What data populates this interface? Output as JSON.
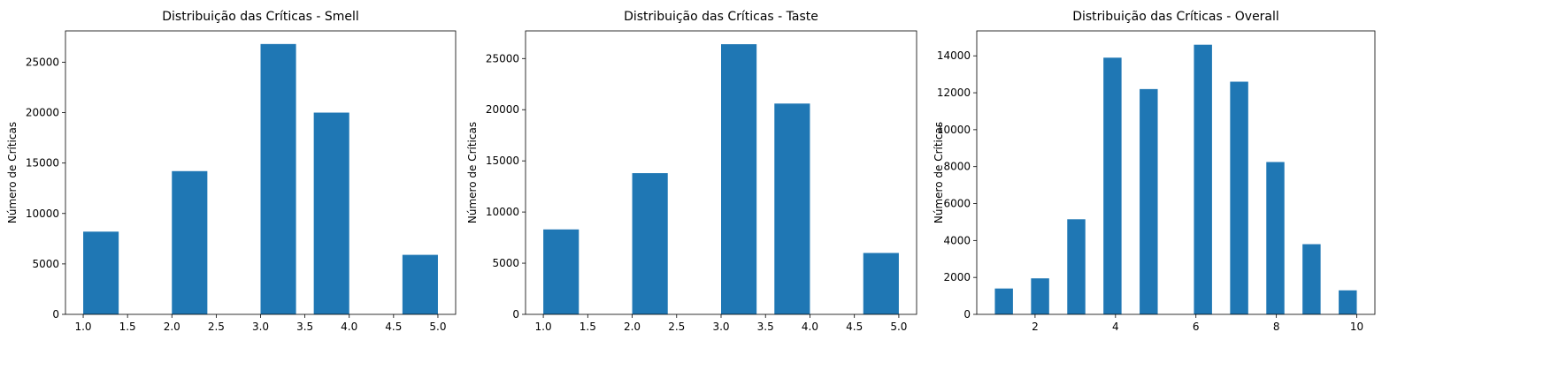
{
  "chart_data": [
    {
      "type": "bar",
      "title": "Distribuição das Críticas - Smell",
      "xlabel": "",
      "ylabel": "Número de Críticas",
      "xlim": [
        0.8,
        5.2
      ],
      "ylim": [
        0,
        28100
      ],
      "xticks": [
        1.0,
        1.5,
        2.0,
        2.5,
        3.0,
        3.5,
        4.0,
        4.5,
        5.0
      ],
      "xtick_labels": [
        "1.0",
        "1.5",
        "2.0",
        "2.5",
        "3.0",
        "3.5",
        "4.0",
        "4.5",
        "5.0"
      ],
      "yticks": [
        0,
        5000,
        10000,
        15000,
        20000,
        25000
      ],
      "ytick_labels": [
        "0",
        "5000",
        "10000",
        "15000",
        "20000",
        "25000"
      ],
      "bar_width": 0.4,
      "bars": [
        {
          "x_start": 1.0,
          "value": 8200
        },
        {
          "x_start": 2.0,
          "value": 14200
        },
        {
          "x_start": 3.0,
          "value": 26800
        },
        {
          "x_start": 3.6,
          "value": 20000
        },
        {
          "x_start": 4.6,
          "value": 5900
        }
      ],
      "grid": false,
      "color": "#1f77b4"
    },
    {
      "type": "bar",
      "title": "Distribuição das Críticas - Taste",
      "xlabel": "",
      "ylabel": "Número de Críticas",
      "xlim": [
        0.8,
        5.2
      ],
      "ylim": [
        0,
        27700
      ],
      "xticks": [
        1.0,
        1.5,
        2.0,
        2.5,
        3.0,
        3.5,
        4.0,
        4.5,
        5.0
      ],
      "xtick_labels": [
        "1.0",
        "1.5",
        "2.0",
        "2.5",
        "3.0",
        "3.5",
        "4.0",
        "4.5",
        "5.0"
      ],
      "yticks": [
        0,
        5000,
        10000,
        15000,
        20000,
        25000
      ],
      "ytick_labels": [
        "0",
        "5000",
        "10000",
        "15000",
        "20000",
        "25000"
      ],
      "bar_width": 0.4,
      "bars": [
        {
          "x_start": 1.0,
          "value": 8300
        },
        {
          "x_start": 2.0,
          "value": 13800
        },
        {
          "x_start": 3.0,
          "value": 26400
        },
        {
          "x_start": 3.6,
          "value": 20600
        },
        {
          "x_start": 4.6,
          "value": 6000
        }
      ],
      "grid": false,
      "color": "#1f77b4"
    },
    {
      "type": "bar",
      "title": "Distribuição das Críticas - Overall",
      "xlabel": "",
      "ylabel": "Número de Críticas",
      "xlim": [
        0.55,
        10.45
      ],
      "ylim": [
        0,
        15350
      ],
      "xticks": [
        2,
        4,
        6,
        8,
        10
      ],
      "xtick_labels": [
        "2",
        "4",
        "6",
        "8",
        "10"
      ],
      "yticks": [
        0,
        2000,
        4000,
        6000,
        8000,
        10000,
        12000,
        14000
      ],
      "ytick_labels": [
        "0",
        "2000",
        "4000",
        "6000",
        "8000",
        "10000",
        "12000",
        "14000"
      ],
      "bar_width": 0.45,
      "bars": [
        {
          "x_start": 1.0,
          "value": 1400
        },
        {
          "x_start": 1.9,
          "value": 1950
        },
        {
          "x_start": 2.8,
          "value": 5150
        },
        {
          "x_start": 3.7,
          "value": 13900
        },
        {
          "x_start": 4.6,
          "value": 12200
        },
        {
          "x_start": 5.95,
          "value": 14600
        },
        {
          "x_start": 6.85,
          "value": 12600
        },
        {
          "x_start": 7.75,
          "value": 8250
        },
        {
          "x_start": 8.65,
          "value": 3800
        },
        {
          "x_start": 9.55,
          "value": 1300
        }
      ],
      "grid": false,
      "color": "#1f77b4"
    }
  ]
}
